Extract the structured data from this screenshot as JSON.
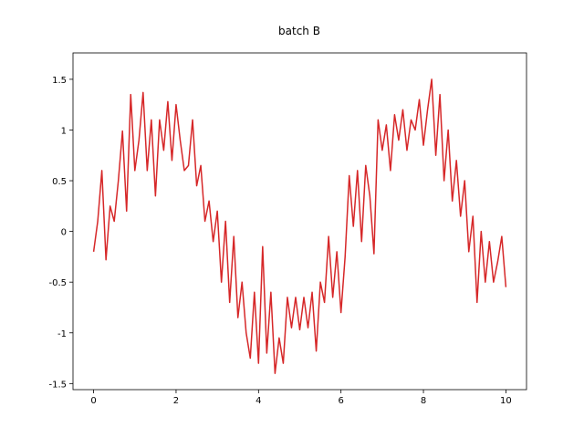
{
  "chart_data": {
    "type": "line",
    "title": "batch B",
    "x": [
      0,
      0.1,
      0.2,
      0.3,
      0.4,
      0.5,
      0.6,
      0.7,
      0.8,
      0.9,
      1,
      1.1,
      1.2,
      1.3,
      1.4,
      1.5,
      1.6,
      1.7,
      1.8,
      1.9,
      2,
      2.1,
      2.2,
      2.3,
      2.4,
      2.5,
      2.6,
      2.7,
      2.8,
      2.9,
      3,
      3.1,
      3.2,
      3.3,
      3.4,
      3.5,
      3.6,
      3.7,
      3.8,
      3.9,
      4,
      4.1,
      4.2,
      4.3,
      4.4,
      4.5,
      4.6,
      4.7,
      4.8,
      4.9,
      5,
      5.1,
      5.2,
      5.3,
      5.4,
      5.5,
      5.6,
      5.7,
      5.8,
      5.9,
      6,
      6.1,
      6.2,
      6.3,
      6.4,
      6.5,
      6.6,
      6.7,
      6.8,
      6.9,
      7,
      7.1,
      7.2,
      7.3,
      7.4,
      7.5,
      7.6,
      7.7,
      7.8,
      7.9,
      8,
      8.1,
      8.2,
      8.3,
      8.4,
      8.5,
      8.6,
      8.7,
      8.8,
      8.9,
      9,
      9.1,
      9.2,
      9.3,
      9.4,
      9.5,
      9.6,
      9.7,
      9.8,
      9.9,
      10
    ],
    "series": [
      {
        "color": "#d62728",
        "values": [
          -0.2,
          0.1,
          0.6,
          -0.28,
          0.25,
          0.1,
          0.5,
          0.99,
          0.2,
          1.35,
          0.6,
          0.9,
          1.37,
          0.6,
          1.1,
          0.35,
          1.1,
          0.8,
          1.28,
          0.7,
          1.25,
          0.9,
          0.6,
          0.65,
          1.1,
          0.45,
          0.65,
          0.1,
          0.3,
          -0.1,
          0.2,
          -0.5,
          0.1,
          -0.7,
          -0.05,
          -0.85,
          -0.5,
          -1.0,
          -1.25,
          -0.6,
          -1.3,
          -0.15,
          -1.2,
          -0.6,
          -1.4,
          -1.05,
          -1.3,
          -0.65,
          -0.95,
          -0.65,
          -0.97,
          -0.65,
          -0.95,
          -0.6,
          -1.18,
          -0.5,
          -0.7,
          -0.05,
          -0.65,
          -0.2,
          -0.8,
          -0.25,
          0.55,
          0.05,
          0.6,
          -0.1,
          0.65,
          0.35,
          -0.22,
          1.1,
          0.8,
          1.05,
          0.6,
          1.15,
          0.9,
          1.2,
          0.8,
          1.1,
          1.0,
          1.3,
          0.85,
          1.2,
          1.5,
          0.75,
          1.35,
          0.5,
          1.0,
          0.3,
          0.7,
          0.15,
          0.5,
          -0.2,
          0.15,
          -0.7,
          0.0,
          -0.5,
          -0.1,
          -0.5,
          -0.3,
          -0.05,
          -0.55
        ]
      }
    ],
    "xlim": [
      -0.5,
      10.5
    ],
    "ylim": [
      -1.56,
      1.76
    ],
    "xticks": [
      0,
      2,
      4,
      6,
      8,
      10
    ],
    "yticks": [
      -1.5,
      -1,
      -0.5,
      0,
      0.5,
      1,
      1.5
    ]
  }
}
